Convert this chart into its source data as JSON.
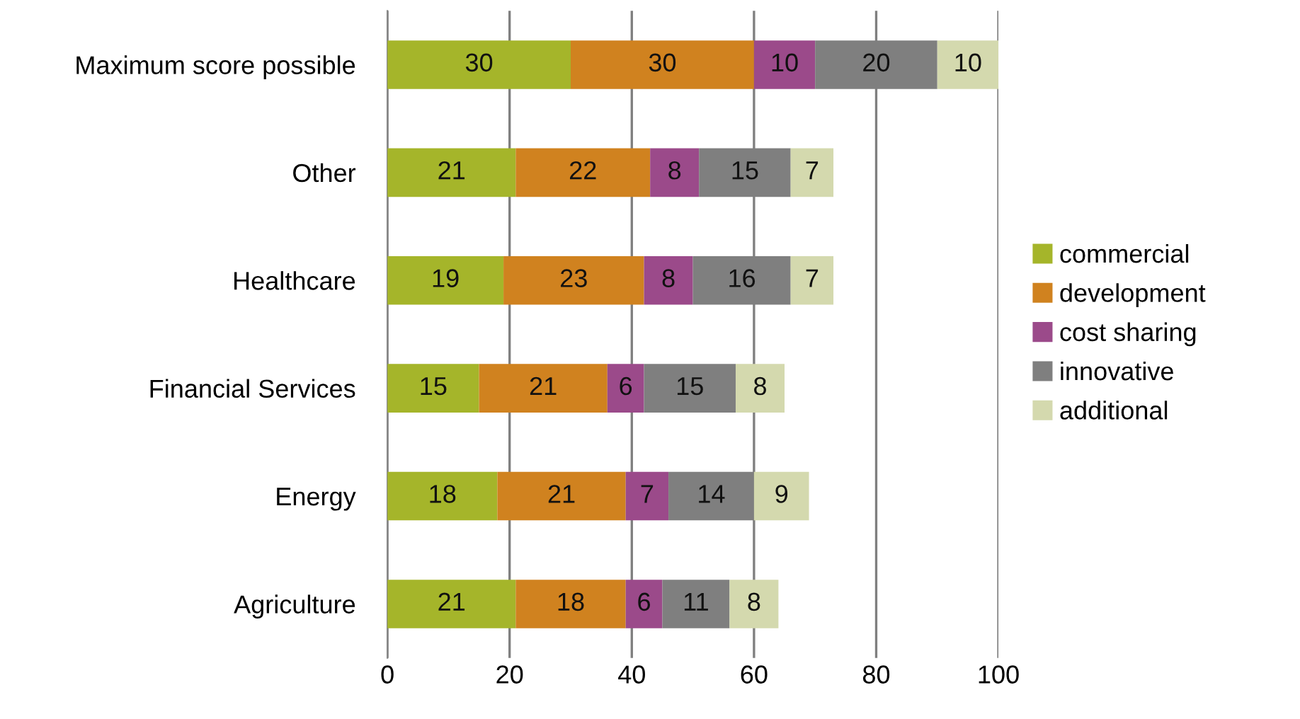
{
  "chart_data": {
    "type": "bar",
    "orientation": "horizontal",
    "stacked": true,
    "data_labels": true,
    "grid": "x",
    "legend": "right",
    "categories": [
      "Maximum score possible",
      "Other",
      "Healthcare",
      "Financial Services",
      "Energy",
      "Agriculture"
    ],
    "xlim": [
      0,
      100
    ],
    "xticks": [
      0,
      20,
      40,
      60,
      80,
      100
    ],
    "series": [
      {
        "name": "commercial",
        "color": "#a5b52a",
        "values": [
          30,
          21,
          19,
          15,
          18,
          21
        ]
      },
      {
        "name": "development",
        "color": "#d0821f",
        "values": [
          30,
          22,
          23,
          21,
          21,
          18
        ]
      },
      {
        "name": "cost sharing",
        "color": "#9b4a8a",
        "values": [
          10,
          8,
          8,
          6,
          7,
          6
        ]
      },
      {
        "name": "innovative",
        "color": "#7f7f7f",
        "values": [
          20,
          15,
          16,
          15,
          14,
          11
        ]
      },
      {
        "name": "additional",
        "color": "#d4d9ae",
        "values": [
          10,
          7,
          7,
          8,
          9,
          8
        ]
      }
    ]
  }
}
